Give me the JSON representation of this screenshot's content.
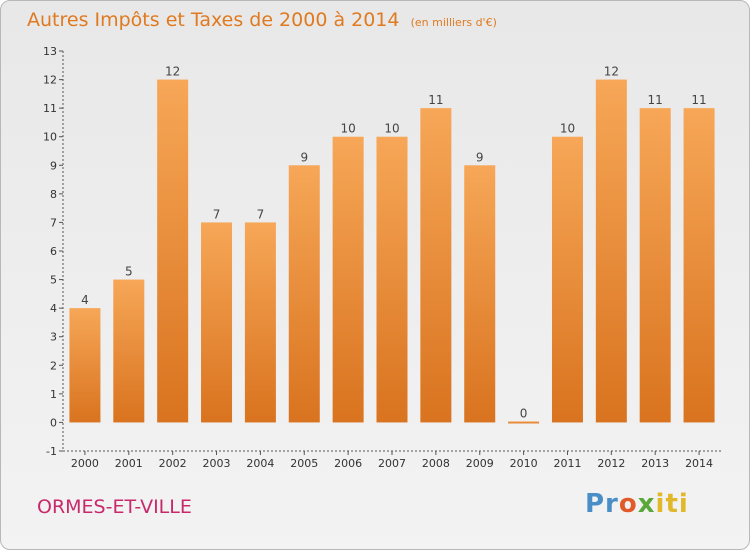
{
  "title": "Autres Impôts et Taxes de 2000 à 2014",
  "subtitle": "(en milliers d'€)",
  "place": "ORMES-ET-VILLE",
  "logo": {
    "p1": "Pr",
    "p2": "o",
    "p3": "x",
    "p4": "iti"
  },
  "colors": {
    "bar_top": "#f6a757",
    "bar_bottom": "#d9731f",
    "title": "#e07a20",
    "place": "#c8296a"
  },
  "chart_data": {
    "type": "bar",
    "categories": [
      "2000",
      "2001",
      "2002",
      "2003",
      "2004",
      "2005",
      "2006",
      "2007",
      "2008",
      "2009",
      "2010",
      "2011",
      "2012",
      "2013",
      "2014"
    ],
    "values": [
      4,
      5,
      12,
      7,
      7,
      9,
      10,
      10,
      11,
      9,
      0,
      10,
      12,
      11,
      11
    ],
    "ylim": [
      -1,
      13
    ],
    "yticks": [
      -1,
      0,
      1,
      2,
      3,
      4,
      5,
      6,
      7,
      8,
      9,
      10,
      11,
      12,
      13
    ],
    "grid": false,
    "legend": "none"
  }
}
